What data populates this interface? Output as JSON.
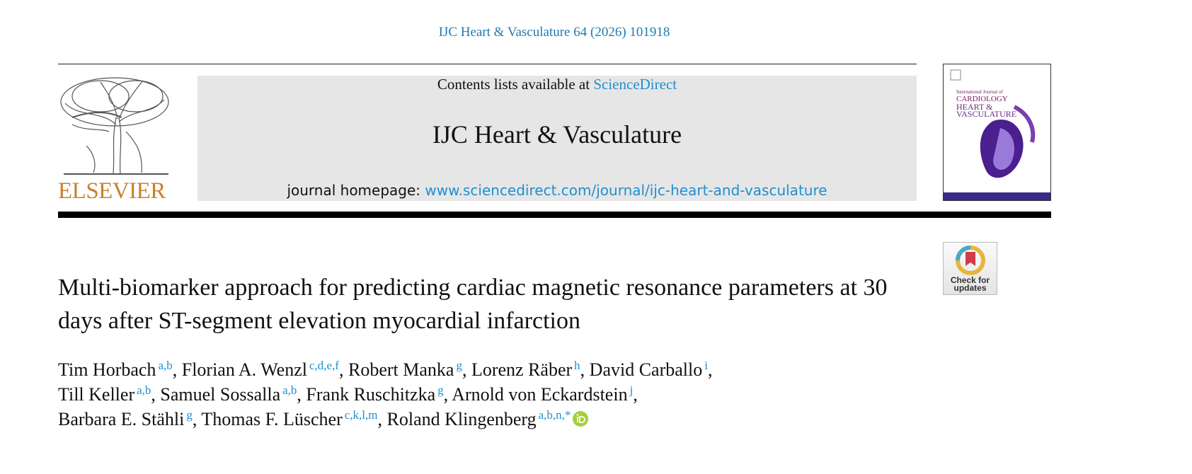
{
  "citation": "IJC Heart & Vasculature 64 (2026) 101918",
  "banner": {
    "contents_prefix": "Contents lists available at",
    "contents_link": "ScienceDirect",
    "journal": "IJC Heart & Vasculature",
    "homepage_prefix": "journal homepage:",
    "homepage_link": "www.sciencedirect.com/journal/ijc-heart-and-vasculature"
  },
  "publisher": "ELSEVIER",
  "cover": {
    "line1": "International Journal of",
    "line2": "CARDIOLOGY",
    "line3": "HEART &",
    "line4": "VASCULATURE"
  },
  "badge": {
    "line1": "Check for",
    "line2": "updates"
  },
  "article": {
    "title": "Multi-biomarker approach for predicting cardiac magnetic resonance parameters at 30 days after ST-segment elevation myocardial infarction",
    "author_lines": [
      [
        {
          "name": "Tim Horbach",
          "affiliations": "a,b",
          "punctuation": ","
        },
        {
          "name": "Florian A. Wenzl",
          "affiliations": "c,d,e,f",
          "punctuation": ","
        },
        {
          "name": "Robert Manka",
          "affiliations": "g",
          "punctuation": ","
        },
        {
          "name": "Lorenz Räber",
          "affiliations": "h",
          "punctuation": ","
        },
        {
          "name": "David Carballo",
          "affiliations": "i",
          "punctuation": ","
        }
      ],
      [
        {
          "name": "Till Keller",
          "affiliations": "a,b",
          "punctuation": ","
        },
        {
          "name": "Samuel Sossalla",
          "affiliations": "a,b",
          "punctuation": ","
        },
        {
          "name": "Frank Ruschitzka",
          "affiliations": "g",
          "punctuation": ","
        },
        {
          "name": "Arnold von Eckardstein",
          "affiliations": "j",
          "punctuation": ","
        }
      ],
      [
        {
          "name": "Barbara E. Stähli",
          "affiliations": "g",
          "punctuation": ","
        },
        {
          "name": "Thomas F. Lüscher",
          "affiliations": "c,k,l,m",
          "punctuation": ","
        },
        {
          "name": "Roland Klingenberg",
          "affiliations": "a,b,n,*"
        }
      ]
    ]
  }
}
